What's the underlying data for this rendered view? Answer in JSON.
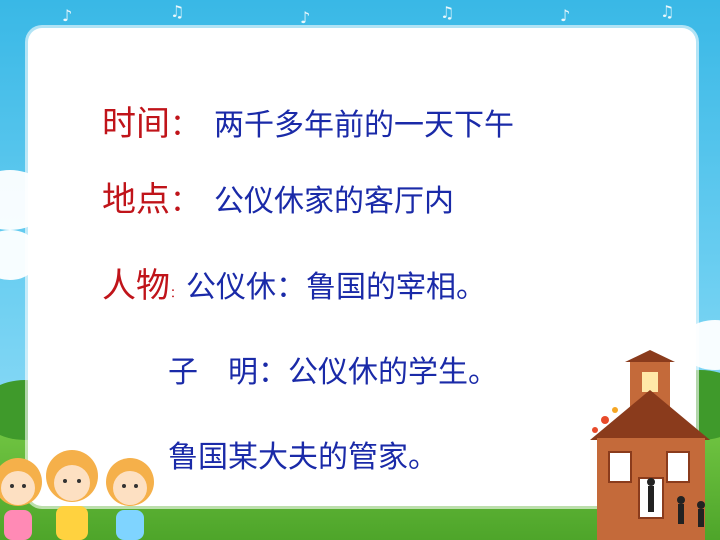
{
  "lines": {
    "time_label": "时间",
    "time_colon": "：",
    "time_value": "两千多年前的一天下午",
    "place_label": "地点",
    "place_colon": "：",
    "place_value": "公仪休家的客厅内",
    "people_label": "人物",
    "people_colon": "：",
    "people_value": "公仪休：鲁国的宰相。",
    "student_value": "子　明：公仪休的学生。",
    "steward_value": "鲁国某大夫的管家。"
  },
  "colors": {
    "label": "#c0141a",
    "value": "#1a2aa8",
    "sky": "#39b8e6",
    "grass": "#4ea52a",
    "panel": "#ffffff"
  },
  "decorations": {
    "sky_icon": "music-notes-icon",
    "left_icon": "cartoon-children-illustration",
    "right_icon": "schoolhouse-illustration"
  }
}
